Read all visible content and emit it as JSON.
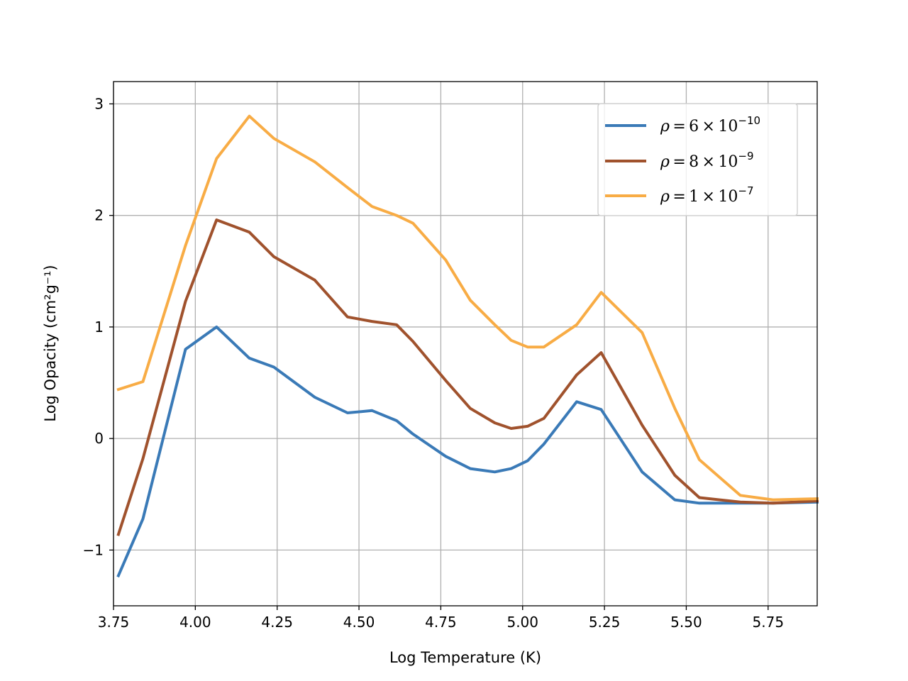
{
  "chart_data": {
    "type": "line",
    "xlabel": "Log Temperature (K)",
    "ylabel": "Log Opacity (cm²g⁻¹)",
    "xlim": [
      3.75,
      5.9
    ],
    "ylim": [
      -1.5,
      3.2
    ],
    "xticks": [
      "3.75",
      "4.00",
      "4.25",
      "4.50",
      "4.75",
      "5.00",
      "5.25",
      "5.50",
      "5.75"
    ],
    "xtick_values": [
      3.75,
      4.0,
      4.25,
      4.5,
      4.75,
      5.0,
      5.25,
      5.5,
      5.75
    ],
    "yticks": [
      "−1",
      "0",
      "1",
      "2",
      "3"
    ],
    "ytick_values": [
      -1,
      0,
      1,
      2,
      3
    ],
    "grid": true,
    "legend_position": "upper-right",
    "series": [
      {
        "name": "ρ = 6 × 10⁻¹⁰",
        "legend": {
          "prefix": "ρ",
          "mantissa": "6",
          "exponent": "−10"
        },
        "color": "#3a7ab7",
        "x": [
          3.765,
          3.84,
          3.97,
          4.065,
          4.165,
          4.24,
          4.365,
          4.465,
          4.54,
          4.615,
          4.665,
          4.765,
          4.84,
          4.915,
          4.965,
          5.015,
          5.065,
          5.165,
          5.24,
          5.365,
          5.465,
          5.54,
          5.665,
          5.765,
          5.9
        ],
        "y": [
          -1.23,
          -0.72,
          0.8,
          1.0,
          0.72,
          0.64,
          0.37,
          0.23,
          0.25,
          0.16,
          0.04,
          -0.16,
          -0.27,
          -0.3,
          -0.27,
          -0.2,
          -0.05,
          0.33,
          0.26,
          -0.3,
          -0.55,
          -0.58,
          -0.58,
          -0.58,
          -0.57
        ]
      },
      {
        "name": "ρ = 8 × 10⁻⁹",
        "legend": {
          "prefix": "ρ",
          "mantissa": "8",
          "exponent": "−9"
        },
        "color": "#a0522d",
        "x": [
          3.765,
          3.84,
          3.97,
          4.065,
          4.165,
          4.24,
          4.365,
          4.465,
          4.54,
          4.615,
          4.665,
          4.765,
          4.84,
          4.915,
          4.965,
          5.015,
          5.065,
          5.165,
          5.24,
          5.365,
          5.465,
          5.54,
          5.665,
          5.765,
          5.9
        ],
        "y": [
          -0.86,
          -0.18,
          1.23,
          1.96,
          1.85,
          1.63,
          1.42,
          1.09,
          1.05,
          1.02,
          0.87,
          0.52,
          0.27,
          0.14,
          0.09,
          0.11,
          0.18,
          0.57,
          0.77,
          0.12,
          -0.33,
          -0.53,
          -0.57,
          -0.58,
          -0.56
        ]
      },
      {
        "name": "ρ = 1 × 10⁻⁷",
        "legend": {
          "prefix": "ρ",
          "mantissa": "1",
          "exponent": "−7"
        },
        "color": "#f8ac45",
        "x": [
          3.765,
          3.84,
          3.97,
          4.065,
          4.165,
          4.24,
          4.365,
          4.465,
          4.54,
          4.615,
          4.665,
          4.765,
          4.84,
          4.915,
          4.965,
          5.015,
          5.065,
          5.165,
          5.24,
          5.365,
          5.465,
          5.54,
          5.665,
          5.765,
          5.9
        ],
        "y": [
          0.44,
          0.51,
          1.73,
          2.51,
          2.89,
          2.69,
          2.48,
          2.25,
          2.08,
          2.0,
          1.93,
          1.6,
          1.24,
          1.02,
          0.88,
          0.82,
          0.82,
          1.02,
          1.31,
          0.95,
          0.27,
          -0.19,
          -0.51,
          -0.55,
          -0.54
        ]
      }
    ]
  }
}
